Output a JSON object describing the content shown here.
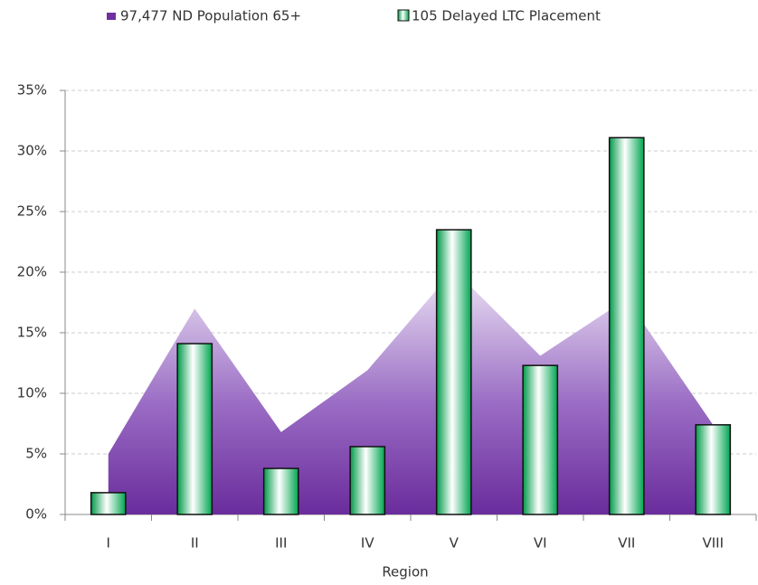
{
  "chart_data": {
    "type": "bar",
    "x_label": "Region",
    "categories": [
      "I",
      "II",
      "III",
      "IV",
      "V",
      "VI",
      "VII",
      "VIII"
    ],
    "series": [
      {
        "name": "97,477 ND Population 65+",
        "type": "area",
        "color": "#7030a0",
        "values": [
          5.0,
          17.0,
          6.8,
          11.9,
          20.2,
          13.1,
          17.8,
          7.4
        ]
      },
      {
        "name": "105 Delayed LTC Placement",
        "type": "bar",
        "color": "#00a550",
        "values": [
          1.8,
          14.1,
          3.8,
          5.6,
          23.5,
          12.3,
          31.1,
          7.4
        ]
      }
    ],
    "ylim": [
      0,
      35
    ],
    "yticks": [
      {
        "value": 0,
        "label": "0%"
      },
      {
        "value": 5,
        "label": "5%"
      },
      {
        "value": 10,
        "label": "10%"
      },
      {
        "value": 15,
        "label": "15%"
      },
      {
        "value": 20,
        "label": "20%"
      },
      {
        "value": 25,
        "label": "25%"
      },
      {
        "value": 30,
        "label": "30%"
      },
      {
        "value": 35,
        "label": "35%"
      }
    ],
    "grid": true
  }
}
